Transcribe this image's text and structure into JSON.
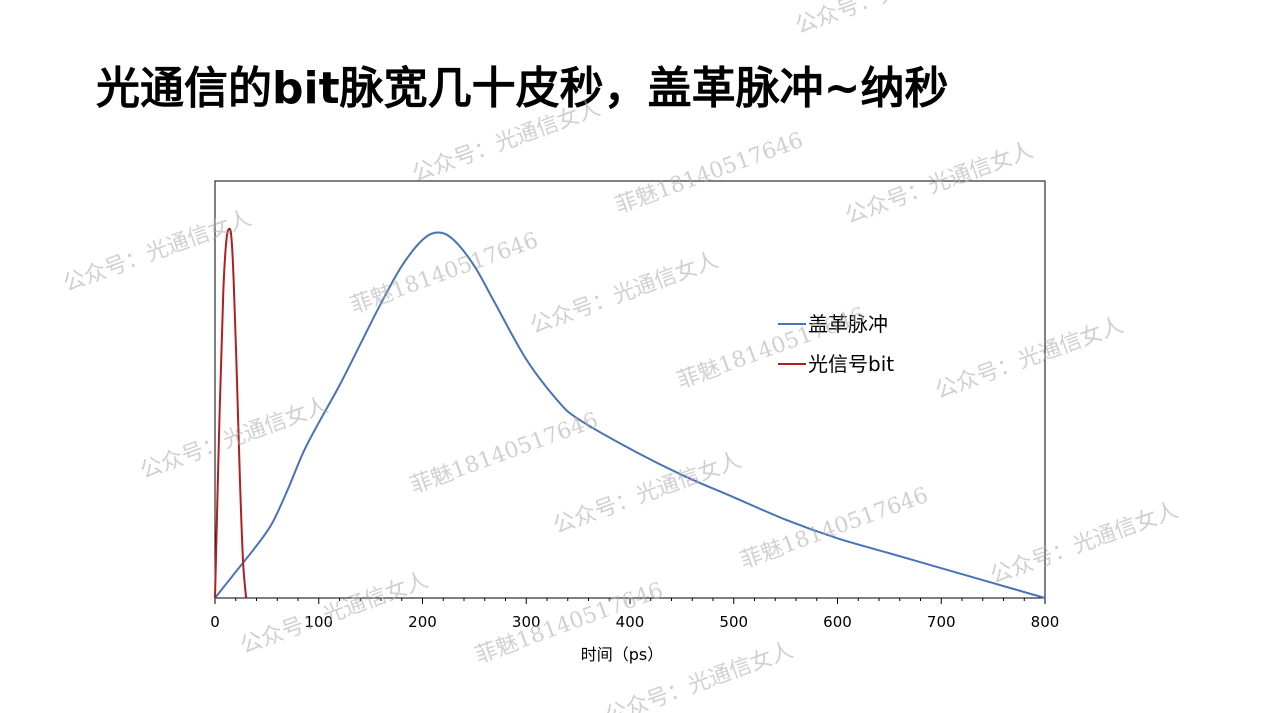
{
  "page": {
    "title": "光通信的bit脉宽几十皮秒，盖革脉冲~纳秒"
  },
  "watermarks": [
    "公众号：光通信女人",
    "菲魅18140517646"
  ],
  "colors": {
    "series_geiger": "#4a72b8",
    "series_bit": "#b01e1e",
    "axis": "#000000",
    "watermark": "#aaaaaa"
  },
  "chart_data": {
    "type": "line",
    "title": "",
    "xlabel": "时间（ps）",
    "ylabel": "",
    "xlim": [
      0,
      800
    ],
    "ylim": [
      0,
      1
    ],
    "xticks": [
      0,
      100,
      200,
      300,
      400,
      500,
      600,
      700,
      800
    ],
    "grid": false,
    "legend_position": "right",
    "series": [
      {
        "name": "盖革脉冲",
        "color": "#4a72b8",
        "x": [
          0,
          20,
          40,
          55,
          70,
          85,
          100,
          120,
          140,
          160,
          180,
          200,
          215,
          230,
          250,
          270,
          300,
          330,
          350,
          400,
          450,
          500,
          550,
          600,
          650,
          700,
          750,
          800
        ],
        "y": [
          0,
          0.07,
          0.14,
          0.2,
          0.29,
          0.39,
          0.47,
          0.57,
          0.68,
          0.79,
          0.89,
          0.96,
          0.98,
          0.96,
          0.89,
          0.79,
          0.64,
          0.53,
          0.48,
          0.4,
          0.33,
          0.27,
          0.21,
          0.16,
          0.12,
          0.08,
          0.04,
          0
        ]
      },
      {
        "name": "光信号bit",
        "color": "#b01e1e",
        "x": [
          0,
          4,
          8,
          11,
          14,
          16,
          18,
          21,
          24,
          27,
          30
        ],
        "y": [
          0,
          0.45,
          0.82,
          0.96,
          0.99,
          0.96,
          0.85,
          0.6,
          0.32,
          0.1,
          0
        ]
      }
    ]
  }
}
